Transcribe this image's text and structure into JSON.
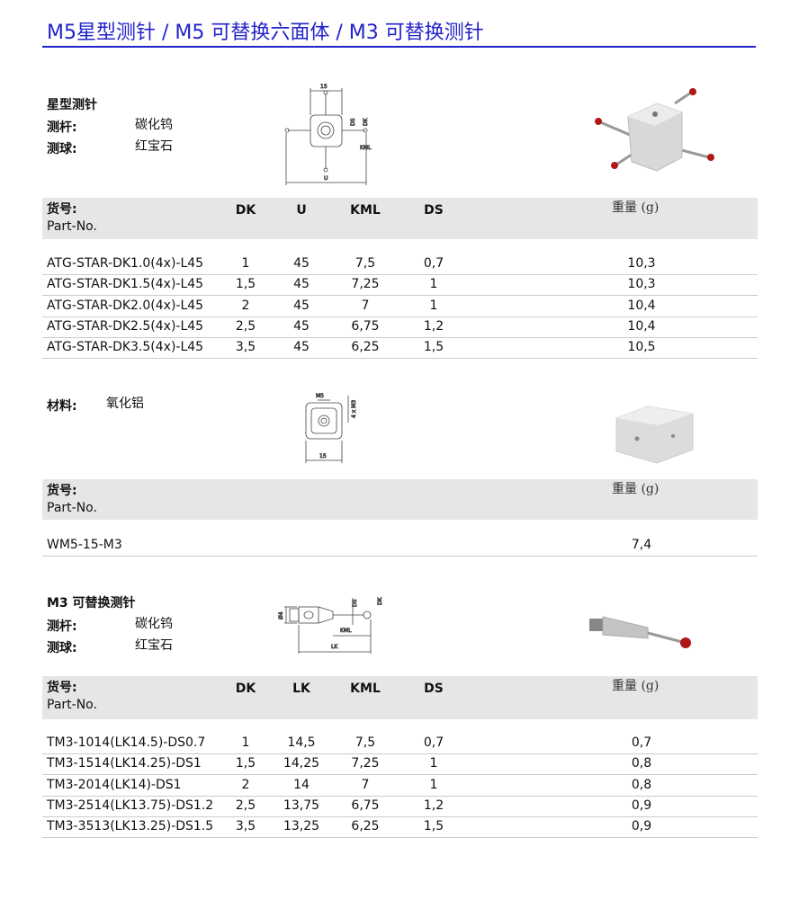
{
  "title": "M5星型测针 / M5 可替换六面体 / M3 可替换测针",
  "s1": {
    "heading": "星型测针",
    "labels": [
      {
        "k": "测杆:",
        "v": "碳化钨"
      },
      {
        "k": "测球:",
        "v": "红宝石"
      }
    ],
    "drawing": {
      "top": "15",
      "ds": "DS",
      "dk": "DK",
      "kml": "KML",
      "u": "U"
    },
    "header": {
      "part": "货号:",
      "part_en": "Part-No.",
      "cols": [
        "DK",
        "U",
        "KML",
        "DS"
      ],
      "weight": "重量 (g)"
    },
    "rows": [
      [
        "ATG-STAR-DK1.0(4x)-L45",
        "1",
        "45",
        "7,5",
        "0,7",
        "10,3"
      ],
      [
        "ATG-STAR-DK1.5(4x)-L45",
        "1,5",
        "45",
        "7,25",
        "1",
        "10,3"
      ],
      [
        "ATG-STAR-DK2.0(4x)-L45",
        "2",
        "45",
        "7",
        "1",
        "10,4"
      ],
      [
        "ATG-STAR-DK2.5(4x)-L45",
        "2,5",
        "45",
        "6,75",
        "1,2",
        "10,4"
      ],
      [
        "ATG-STAR-DK3.5(4x)-L45",
        "3,5",
        "45",
        "6,25",
        "1,5",
        "10,5"
      ]
    ]
  },
  "s2": {
    "label": "材料:",
    "value": "氧化铝",
    "drawing": {
      "m5": "M5",
      "m3": "4 x M3",
      "w": "15"
    },
    "header": {
      "part": "货号:",
      "part_en": "Part-No.",
      "weight": "重量 (g)"
    },
    "rows": [
      [
        "WM5-15-M3",
        "7,4"
      ]
    ]
  },
  "s3": {
    "heading": "M3 可替换测针",
    "labels": [
      {
        "k": "测杆:",
        "v": "碳化钨"
      },
      {
        "k": "测球:",
        "v": "红宝石"
      }
    ],
    "drawing": {
      "d": "Ø4",
      "ds": "DS",
      "dk": "DK",
      "kml": "KML",
      "lk": "LK"
    },
    "header": {
      "part": "货号:",
      "part_en": "Part-No.",
      "cols": [
        "DK",
        "LK",
        "KML",
        "DS"
      ],
      "weight": "重量 (g)"
    },
    "rows": [
      [
        "TM3-1014(LK14.5)-DS0.7",
        "1",
        "14,5",
        "7,5",
        "0,7",
        "0,7"
      ],
      [
        "TM3-1514(LK14.25)-DS1",
        "1,5",
        "14,25",
        "7,25",
        "1",
        "0,8"
      ],
      [
        "TM3-2014(LK14)-DS1",
        "2",
        "14",
        "7",
        "1",
        "0,8"
      ],
      [
        "TM3-2514(LK13.75)-DS1.2",
        "2,5",
        "13,75",
        "6,75",
        "1,2",
        "0,9"
      ],
      [
        "TM3-3513(LK13.25)-DS1.5",
        "3,5",
        "13,25",
        "6,25",
        "1,5",
        "0,9"
      ]
    ]
  }
}
